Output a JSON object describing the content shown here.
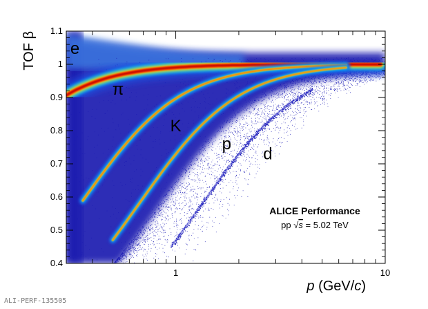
{
  "chart_data": {
    "type": "heatmap",
    "title": "",
    "xlabel": "p (GeV/c)",
    "ylabel": "TOF β",
    "x_scale": "log",
    "xlim": [
      0.3,
      10
    ],
    "ylim": [
      0.4,
      1.1
    ],
    "x_ticks": [
      "1",
      "10"
    ],
    "y_ticks": [
      "0.4",
      "0.5",
      "0.6",
      "0.7",
      "0.8",
      "0.9",
      "1",
      "1.1"
    ],
    "grid": false,
    "species": [
      {
        "label": "e",
        "mass_gev": 0.000511,
        "label_pos": [
          0.33,
          1.048
        ]
      },
      {
        "label": "π",
        "mass_gev": 0.1396,
        "label_pos": [
          0.53,
          0.925
        ]
      },
      {
        "label": "K",
        "mass_gev": 0.4937,
        "label_pos": [
          1.0,
          0.815
        ]
      },
      {
        "label": "p",
        "mass_gev": 0.9383,
        "label_pos": [
          1.75,
          0.76
        ]
      },
      {
        "label": "d",
        "mass_gev": 1.8756,
        "label_pos": [
          2.75,
          0.73
        ]
      }
    ],
    "annotation": {
      "title": "ALICE Performance",
      "subtitle_prefix": "pp",
      "sqrt_symbol": "√",
      "energy_var": "s",
      "energy_value": " = 5.02 TeV"
    },
    "colors": {
      "background_scale_low": "#1b1bb0",
      "scale_mid": "#00c0ff",
      "scale_high": "#ffd700",
      "scale_max": "#c00000"
    }
  },
  "footer": {
    "id_text": "ALI-PERF-135505"
  }
}
